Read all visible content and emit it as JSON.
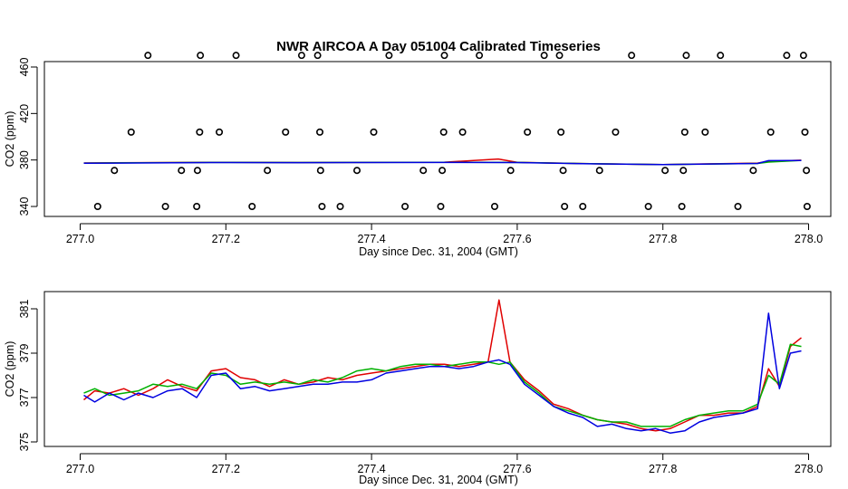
{
  "title": "NWR AIRCOA A  Day 051004  Calibrated Timeseries",
  "chart_data": [
    {
      "type": "scatter+line",
      "xlabel": "Day since Dec. 31, 2004 (GMT)",
      "ylabel": "CO2 (ppm)",
      "xlim": [
        277.0,
        278.0
      ],
      "ylim": [
        334,
        474
      ],
      "xticks": [
        277.0,
        277.2,
        277.4,
        277.6,
        277.8,
        278.0
      ],
      "xtick_labels": [
        "277.0",
        "277.2",
        "277.4",
        "277.6",
        "277.8",
        "278.0"
      ],
      "yticks": [
        340,
        380,
        420,
        460
      ],
      "ytick_labels": [
        "340",
        "380",
        "420",
        "460"
      ],
      "points": [
        {
          "x": 277.093,
          "y": 470
        },
        {
          "x": 277.165,
          "y": 470
        },
        {
          "x": 277.214,
          "y": 470
        },
        {
          "x": 277.304,
          "y": 470
        },
        {
          "x": 277.326,
          "y": 470
        },
        {
          "x": 277.424,
          "y": 470
        },
        {
          "x": 277.5,
          "y": 470
        },
        {
          "x": 277.548,
          "y": 470
        },
        {
          "x": 277.637,
          "y": 470
        },
        {
          "x": 277.658,
          "y": 470
        },
        {
          "x": 277.757,
          "y": 470
        },
        {
          "x": 277.832,
          "y": 470
        },
        {
          "x": 277.879,
          "y": 470
        },
        {
          "x": 277.97,
          "y": 470
        },
        {
          "x": 277.993,
          "y": 470
        },
        {
          "x": 277.07,
          "y": 404
        },
        {
          "x": 277.164,
          "y": 404
        },
        {
          "x": 277.191,
          "y": 404
        },
        {
          "x": 277.282,
          "y": 404
        },
        {
          "x": 277.329,
          "y": 404
        },
        {
          "x": 277.403,
          "y": 404
        },
        {
          "x": 277.499,
          "y": 404
        },
        {
          "x": 277.525,
          "y": 404
        },
        {
          "x": 277.614,
          "y": 404
        },
        {
          "x": 277.66,
          "y": 404
        },
        {
          "x": 277.735,
          "y": 404
        },
        {
          "x": 277.83,
          "y": 404
        },
        {
          "x": 277.858,
          "y": 404
        },
        {
          "x": 277.948,
          "y": 404
        },
        {
          "x": 277.995,
          "y": 404
        },
        {
          "x": 277.047,
          "y": 371
        },
        {
          "x": 277.139,
          "y": 371
        },
        {
          "x": 277.161,
          "y": 371
        },
        {
          "x": 277.257,
          "y": 371
        },
        {
          "x": 277.33,
          "y": 371
        },
        {
          "x": 277.38,
          "y": 371
        },
        {
          "x": 277.471,
          "y": 371
        },
        {
          "x": 277.497,
          "y": 371
        },
        {
          "x": 277.591,
          "y": 371
        },
        {
          "x": 277.663,
          "y": 371
        },
        {
          "x": 277.713,
          "y": 371
        },
        {
          "x": 277.803,
          "y": 371
        },
        {
          "x": 277.828,
          "y": 371
        },
        {
          "x": 277.924,
          "y": 371
        },
        {
          "x": 277.997,
          "y": 371
        },
        {
          "x": 277.024,
          "y": 340
        },
        {
          "x": 277.117,
          "y": 340
        },
        {
          "x": 277.16,
          "y": 340
        },
        {
          "x": 277.236,
          "y": 340
        },
        {
          "x": 277.332,
          "y": 340
        },
        {
          "x": 277.357,
          "y": 340
        },
        {
          "x": 277.446,
          "y": 340
        },
        {
          "x": 277.495,
          "y": 340
        },
        {
          "x": 277.569,
          "y": 340
        },
        {
          "x": 277.665,
          "y": 340
        },
        {
          "x": 277.69,
          "y": 340
        },
        {
          "x": 277.78,
          "y": 340
        },
        {
          "x": 277.826,
          "y": 340
        },
        {
          "x": 277.903,
          "y": 340
        },
        {
          "x": 277.998,
          "y": 340
        }
      ],
      "series": [
        {
          "name": "red",
          "color": "#e00000",
          "x": [
            277.005,
            277.18,
            277.3,
            277.5,
            277.574,
            277.6,
            277.7,
            277.8,
            277.93,
            277.945,
            277.99
          ],
          "values": [
            377.4,
            378.0,
            377.8,
            378.1,
            380.8,
            378.0,
            376.8,
            376.0,
            377.3,
            378.9,
            379.8
          ]
        },
        {
          "name": "green",
          "color": "#00b000",
          "x": [
            277.005,
            277.18,
            277.3,
            277.5,
            277.6,
            277.7,
            277.8,
            277.93,
            277.945,
            277.99
          ],
          "values": [
            377.3,
            377.9,
            377.8,
            378.0,
            377.9,
            376.8,
            376.1,
            377.0,
            378.2,
            379.7
          ]
        },
        {
          "name": "blue",
          "color": "#0000e0",
          "x": [
            277.005,
            277.18,
            277.3,
            277.5,
            277.6,
            277.7,
            277.8,
            277.93,
            277.945,
            277.99
          ],
          "values": [
            377.2,
            377.8,
            377.7,
            377.9,
            377.8,
            376.7,
            376.0,
            377.0,
            379.4,
            379.6
          ]
        }
      ]
    },
    {
      "type": "line",
      "xlabel": "Day since Dec. 31, 2004 (GMT)",
      "ylabel": "CO2 (ppm)",
      "xlim": [
        277.0,
        278.0
      ],
      "ylim": [
        375,
        381.5
      ],
      "xticks": [
        277.0,
        277.2,
        277.4,
        277.6,
        277.8,
        278.0
      ],
      "xtick_labels": [
        "277.0",
        "277.2",
        "277.4",
        "277.6",
        "277.8",
        "278.0"
      ],
      "yticks": [
        375,
        377,
        379,
        381
      ],
      "ytick_labels": [
        "375",
        "377",
        "379",
        "381"
      ],
      "series": [
        {
          "name": "red",
          "color": "#e00000",
          "x": [
            277.005,
            277.02,
            277.04,
            277.06,
            277.08,
            277.1,
            277.12,
            277.14,
            277.16,
            277.18,
            277.2,
            277.22,
            277.24,
            277.26,
            277.28,
            277.3,
            277.32,
            277.34,
            277.36,
            277.38,
            277.4,
            277.42,
            277.44,
            277.46,
            277.48,
            277.5,
            277.52,
            277.54,
            277.56,
            277.575,
            277.59,
            277.61,
            277.63,
            277.65,
            277.67,
            277.69,
            277.71,
            277.73,
            277.75,
            277.77,
            277.79,
            277.81,
            277.83,
            277.85,
            277.87,
            277.89,
            277.91,
            277.93,
            277.945,
            277.96,
            277.975,
            277.99
          ],
          "values": [
            376.9,
            377.3,
            377.2,
            377.4,
            377.1,
            377.4,
            377.8,
            377.5,
            377.3,
            378.2,
            378.3,
            377.9,
            377.8,
            377.5,
            377.8,
            377.6,
            377.7,
            377.9,
            377.8,
            378.0,
            378.1,
            378.2,
            378.3,
            378.4,
            378.5,
            378.5,
            378.4,
            378.5,
            378.6,
            381.4,
            378.6,
            377.8,
            377.3,
            376.7,
            376.5,
            376.2,
            376.0,
            375.9,
            375.8,
            375.6,
            375.5,
            375.6,
            375.9,
            376.2,
            376.2,
            376.3,
            376.3,
            376.6,
            378.3,
            377.5,
            379.3,
            379.7
          ]
        },
        {
          "name": "green",
          "color": "#00b000",
          "x": [
            277.005,
            277.02,
            277.04,
            277.06,
            277.08,
            277.1,
            277.12,
            277.14,
            277.16,
            277.18,
            277.2,
            277.22,
            277.24,
            277.26,
            277.28,
            277.3,
            277.32,
            277.34,
            277.36,
            277.38,
            277.4,
            277.42,
            277.44,
            277.46,
            277.48,
            277.5,
            277.52,
            277.54,
            277.56,
            277.575,
            277.59,
            277.61,
            277.63,
            277.65,
            277.67,
            277.69,
            277.71,
            277.73,
            277.75,
            277.77,
            277.79,
            277.81,
            277.83,
            277.85,
            277.87,
            277.89,
            277.91,
            277.93,
            277.945,
            277.96,
            277.975,
            277.99
          ],
          "values": [
            377.2,
            377.4,
            377.1,
            377.2,
            377.3,
            377.6,
            377.5,
            377.6,
            377.4,
            378.1,
            378.0,
            377.6,
            377.7,
            377.6,
            377.7,
            377.6,
            377.8,
            377.7,
            377.9,
            378.2,
            378.3,
            378.2,
            378.4,
            378.5,
            378.5,
            378.4,
            378.5,
            378.6,
            378.6,
            378.5,
            378.6,
            377.7,
            377.2,
            376.6,
            376.4,
            376.2,
            376.0,
            375.9,
            375.9,
            375.7,
            375.7,
            375.7,
            376.0,
            376.2,
            376.3,
            376.4,
            376.4,
            376.7,
            378.0,
            377.6,
            379.4,
            379.3
          ]
        },
        {
          "name": "blue",
          "color": "#0000e0",
          "x": [
            277.005,
            277.02,
            277.04,
            277.06,
            277.08,
            277.1,
            277.12,
            277.14,
            277.16,
            277.18,
            277.2,
            277.22,
            277.24,
            277.26,
            277.28,
            277.3,
            277.32,
            277.34,
            277.36,
            277.38,
            277.4,
            277.42,
            277.44,
            277.46,
            277.48,
            277.5,
            277.52,
            277.54,
            277.56,
            277.575,
            277.59,
            277.61,
            277.63,
            277.65,
            277.67,
            277.69,
            277.71,
            277.73,
            277.75,
            277.77,
            277.79,
            277.81,
            277.83,
            277.85,
            277.87,
            277.89,
            277.91,
            277.93,
            277.945,
            277.96,
            277.975,
            277.99
          ],
          "values": [
            377.1,
            376.8,
            377.2,
            376.9,
            377.2,
            377.0,
            377.3,
            377.4,
            377.0,
            378.0,
            378.1,
            377.4,
            377.5,
            377.3,
            377.4,
            377.5,
            377.6,
            377.6,
            377.7,
            377.7,
            377.8,
            378.1,
            378.2,
            378.3,
            378.4,
            378.4,
            378.3,
            378.4,
            378.6,
            378.7,
            378.5,
            377.6,
            377.1,
            376.6,
            376.3,
            376.1,
            375.7,
            375.8,
            375.6,
            375.5,
            375.6,
            375.4,
            375.5,
            375.9,
            376.1,
            376.2,
            376.3,
            376.5,
            380.8,
            377.4,
            379.0,
            379.1
          ]
        }
      ]
    }
  ]
}
